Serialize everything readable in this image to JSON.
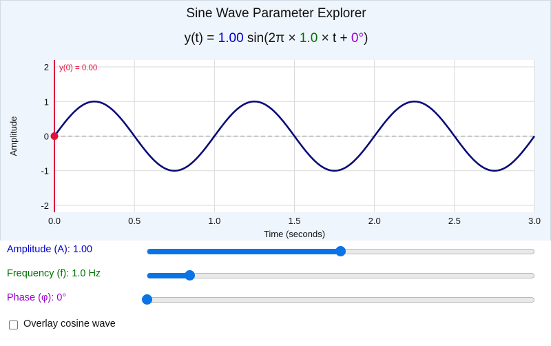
{
  "chart_data": {
    "type": "line",
    "title": "Sine Wave Parameter Explorer",
    "formula": {
      "prefix": "y(t) = ",
      "amplitude": "1.00",
      "mid1": " sin(2π × ",
      "frequency": "1.0",
      "mid2": " × t + ",
      "phase": "0°",
      "suffix": ")"
    },
    "xlabel": "Time (seconds)",
    "ylabel": "Amplitude",
    "xlim": [
      0,
      3
    ],
    "ylim": [
      -2.2,
      2.2
    ],
    "x_ticks": [
      "0.0",
      "0.5",
      "1.0",
      "1.5",
      "2.0",
      "2.5",
      "3.0"
    ],
    "x_tick_values": [
      0,
      0.5,
      1,
      1.5,
      2,
      2.5,
      3
    ],
    "y_ticks": [
      "2",
      "1",
      "0",
      "-1",
      "-2"
    ],
    "y_tick_values": [
      2,
      1,
      0,
      -1,
      -2
    ],
    "grid": true,
    "series": [
      {
        "amplitude": 1.0,
        "frequency_hz": 1.0,
        "phase_deg": 0,
        "function": "sin",
        "color": "#0b0b7a"
      }
    ],
    "marker": {
      "t": 0,
      "y": 0,
      "label": "y(0) = 0.00",
      "color": "#dc143c"
    },
    "zero_line_color": "#999999"
  },
  "controls": {
    "amplitude": {
      "label": "Amplitude (A): 1.00",
      "value": 1.0,
      "min": 0,
      "max": 2,
      "color": "#0000c8"
    },
    "frequency": {
      "label": "Frequency (f): 1.0 Hz",
      "value": 1.0,
      "min": 0.5,
      "max": 5,
      "color": "#007000"
    },
    "phase": {
      "label": "Phase (φ): 0°",
      "value": 0,
      "min": 0,
      "max": 360,
      "color": "#9a00d0"
    },
    "overlay": {
      "label": "Overlay cosine wave",
      "checked": false
    }
  }
}
